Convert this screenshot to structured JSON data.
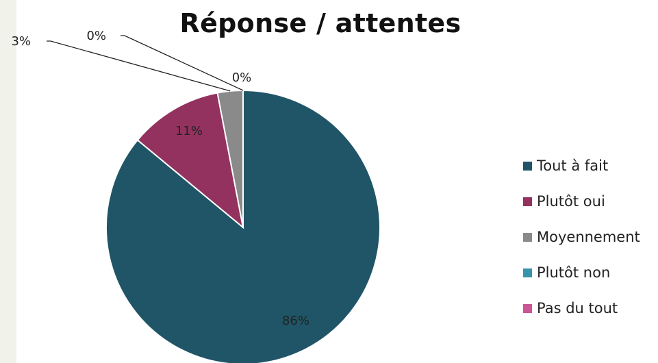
{
  "chart_data": {
    "type": "pie",
    "title": "Réponse / attentes",
    "categories": [
      "Tout à fait",
      "Plutôt oui",
      "Moyennement",
      "Plutôt non",
      "Pas du tout"
    ],
    "values": [
      86,
      11,
      3,
      0,
      0
    ],
    "data_labels": [
      "86%",
      "11%",
      "3%",
      "0%",
      "0%"
    ],
    "colors": [
      "#1f5566",
      "#93325f",
      "#8a8a8a",
      "#3a93ad",
      "#cc5596"
    ],
    "legend_position": "right",
    "start_angle": "top, clockwise"
  }
}
